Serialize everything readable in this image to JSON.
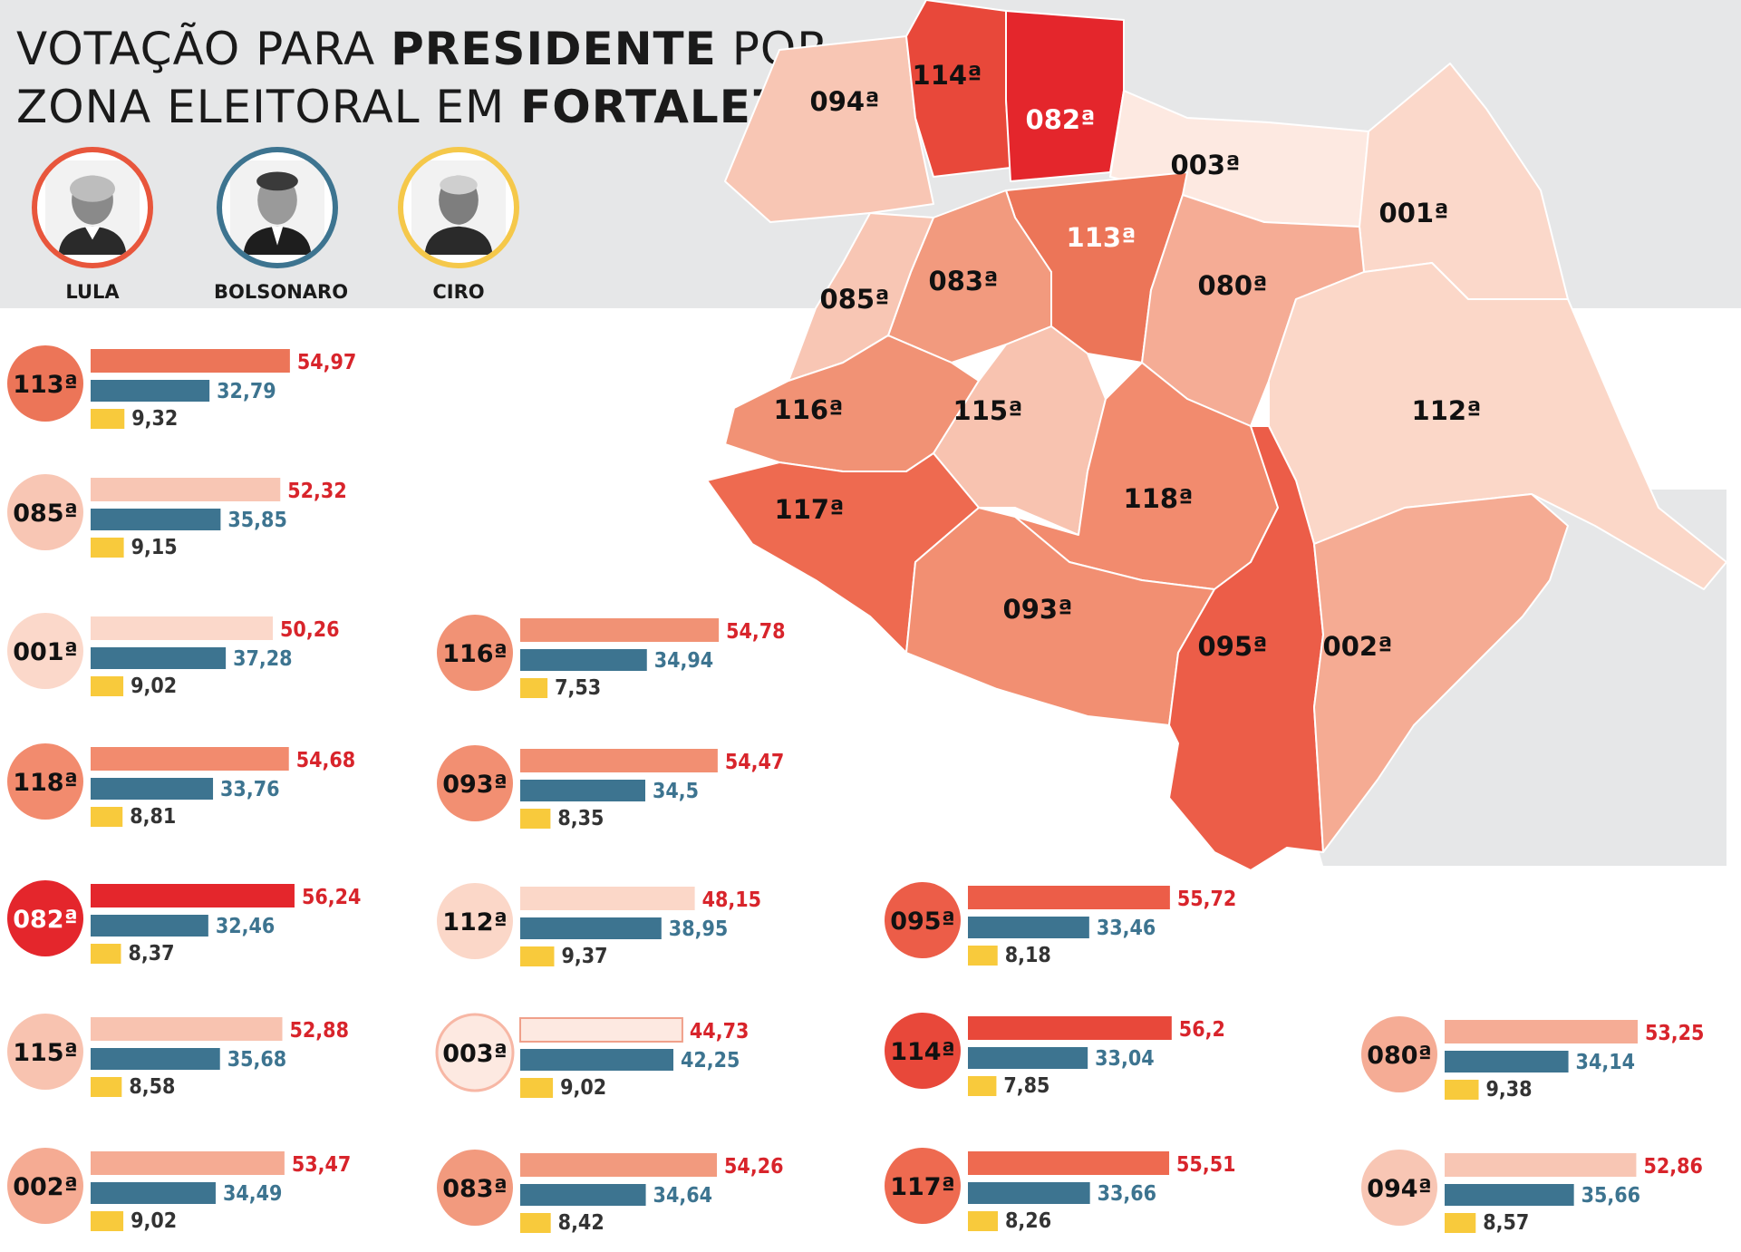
{
  "title": {
    "line1_regular": "VOTAÇÃO PARA ",
    "line1_bold": "PRESIDENTE",
    "line1_tail": " POR",
    "line2_regular": "ZONA ELEITORAL EM ",
    "line2_bold": "FORTALEZA"
  },
  "candidates": [
    {
      "name": "LULA",
      "color": "#e8563c"
    },
    {
      "name": "BOLSONARO",
      "color": "#3d7490"
    },
    {
      "name": "CIRO",
      "color": "#f5c84a"
    }
  ],
  "colors": {
    "lula": "#e8563c",
    "bolsonaro": "#3d7490",
    "ciro": "#f8ca3c",
    "lula_value_text": "#d8242b"
  },
  "map_labels": [
    "094ª",
    "114ª",
    "082ª",
    "003ª",
    "001ª",
    "113ª",
    "083ª",
    "085ª",
    "080ª",
    "116ª",
    "115ª",
    "112ª",
    "117ª",
    "118ª",
    "093ª",
    "095ª",
    "002ª"
  ],
  "chart_data": {
    "type": "bar",
    "orientation": "horizontal",
    "series_names": [
      "LULA",
      "BOLSONARO",
      "CIRO"
    ],
    "zones": [
      {
        "zone": "113ª",
        "lula": 54.97,
        "bolsonaro": 32.79,
        "ciro": 9.32,
        "lula_text": "54,97",
        "bolsonaro_text": "32,79",
        "ciro_text": "9,32",
        "shade": "#ec7558"
      },
      {
        "zone": "085ª",
        "lula": 52.32,
        "bolsonaro": 35.85,
        "ciro": 9.15,
        "lula_text": "52,32",
        "bolsonaro_text": "35,85",
        "ciro_text": "9,15",
        "shade": "#f8c6b4"
      },
      {
        "zone": "001ª",
        "lula": 50.26,
        "bolsonaro": 37.28,
        "ciro": 9.02,
        "lula_text": "50,26",
        "bolsonaro_text": "37,28",
        "ciro_text": "9,02",
        "shade": "#fbd8ca"
      },
      {
        "zone": "116ª",
        "lula": 54.78,
        "bolsonaro": 34.94,
        "ciro": 7.53,
        "lula_text": "54,78",
        "bolsonaro_text": "34,94",
        "ciro_text": "7,53",
        "shade": "#f19275"
      },
      {
        "zone": "118ª",
        "lula": 54.68,
        "bolsonaro": 33.76,
        "ciro": 8.81,
        "lula_text": "54,68",
        "bolsonaro_text": "33,76",
        "ciro_text": "8,81",
        "shade": "#f28b6e"
      },
      {
        "zone": "093ª",
        "lula": 54.47,
        "bolsonaro": 34.5,
        "ciro": 8.35,
        "lula_text": "54,47",
        "bolsonaro_text": "34,5",
        "ciro_text": "8,35",
        "shade": "#f28f72"
      },
      {
        "zone": "082ª",
        "lula": 56.24,
        "bolsonaro": 32.46,
        "ciro": 8.37,
        "lula_text": "56,24",
        "bolsonaro_text": "32,46",
        "ciro_text": "8,37",
        "shade": "#e4262c"
      },
      {
        "zone": "112ª",
        "lula": 48.15,
        "bolsonaro": 38.95,
        "ciro": 9.37,
        "lula_text": "48,15",
        "bolsonaro_text": "38,95",
        "ciro_text": "9,37",
        "shade": "#fbd7c8"
      },
      {
        "zone": "095ª",
        "lula": 55.72,
        "bolsonaro": 33.46,
        "ciro": 8.18,
        "lula_text": "55,72",
        "bolsonaro_text": "33,46",
        "ciro_text": "8,18",
        "shade": "#ec5d48"
      },
      {
        "zone": "115ª",
        "lula": 52.88,
        "bolsonaro": 35.68,
        "ciro": 8.58,
        "lula_text": "52,88",
        "bolsonaro_text": "35,68",
        "ciro_text": "8,58",
        "shade": "#f8c3b0"
      },
      {
        "zone": "003ª",
        "lula": 44.73,
        "bolsonaro": 42.25,
        "ciro": 9.02,
        "lula_text": "44,73",
        "bolsonaro_text": "42,25",
        "ciro_text": "9,02",
        "shade": "#fde9e1"
      },
      {
        "zone": "114ª",
        "lula": 56.2,
        "bolsonaro": 33.04,
        "ciro": 7.85,
        "lula_text": "56,2",
        "bolsonaro_text": "33,04",
        "ciro_text": "7,85",
        "shade": "#e8483a"
      },
      {
        "zone": "080ª",
        "lula": 53.25,
        "bolsonaro": 34.14,
        "ciro": 9.38,
        "lula_text": "53,25",
        "bolsonaro_text": "34,14",
        "ciro_text": "9,38",
        "shade": "#f5ac95"
      },
      {
        "zone": "002ª",
        "lula": 53.47,
        "bolsonaro": 34.49,
        "ciro": 9.02,
        "lula_text": "53,47",
        "bolsonaro_text": "34,49",
        "ciro_text": "9,02",
        "shade": "#f5ab93"
      },
      {
        "zone": "083ª",
        "lula": 54.26,
        "bolsonaro": 34.64,
        "ciro": 8.42,
        "lula_text": "54,26",
        "bolsonaro_text": "34,64",
        "ciro_text": "8,42",
        "shade": "#f29a7e"
      },
      {
        "zone": "117ª",
        "lula": 55.51,
        "bolsonaro": 33.66,
        "ciro": 8.26,
        "lula_text": "55,51",
        "bolsonaro_text": "33,66",
        "ciro_text": "8,26",
        "shade": "#ee6a50"
      },
      {
        "zone": "094ª",
        "lula": 52.86,
        "bolsonaro": 35.66,
        "ciro": 8.57,
        "lula_text": "52,86",
        "bolsonaro_text": "35,66",
        "ciro_text": "8,57",
        "shade": "#f8c6b4"
      }
    ]
  }
}
